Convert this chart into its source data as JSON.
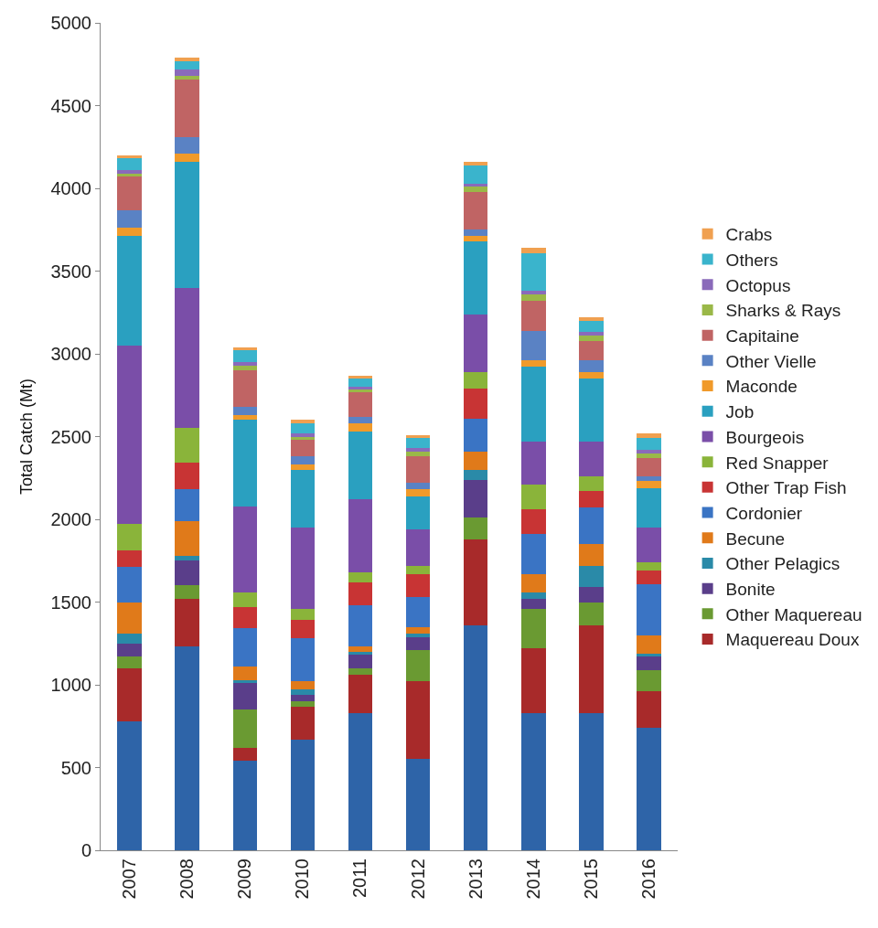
{
  "chart_data": {
    "type": "bar",
    "stacked": true,
    "ylabel": "Total Catch (Mt)",
    "ylim": [
      0,
      5000
    ],
    "yticks": [
      0,
      500,
      1000,
      1500,
      2000,
      2500,
      3000,
      3500,
      4000,
      4500,
      5000
    ],
    "legend": "right",
    "categories": [
      "2007",
      "2008",
      "2009",
      "2010",
      "2011",
      "2012",
      "2013",
      "2014",
      "2015",
      "2016"
    ],
    "series": [
      {
        "color": "#2e64a8",
        "values": [
          780,
          1230,
          540,
          670,
          830,
          550,
          1360,
          830,
          830,
          740
        ]
      },
      {
        "name": "Maquereau Doux",
        "color": "#a82a2a",
        "values": [
          320,
          290,
          80,
          200,
          230,
          470,
          520,
          390,
          530,
          220
        ]
      },
      {
        "name": "Other Maquereau",
        "color": "#6a9a32",
        "values": [
          70,
          80,
          230,
          30,
          40,
          190,
          130,
          240,
          140,
          130
        ]
      },
      {
        "name": "Bonite",
        "color": "#5a3e8a",
        "values": [
          80,
          150,
          160,
          40,
          80,
          80,
          230,
          60,
          90,
          80
        ]
      },
      {
        "name": "Other Pelagics",
        "color": "#2a8aa8",
        "values": [
          60,
          30,
          20,
          30,
          20,
          20,
          60,
          40,
          130,
          20
        ]
      },
      {
        "name": "Becune",
        "color": "#e07a1a",
        "values": [
          190,
          210,
          80,
          50,
          30,
          40,
          110,
          110,
          130,
          110
        ]
      },
      {
        "name": "Cordonier",
        "color": "#3a74c4",
        "values": [
          210,
          190,
          230,
          260,
          250,
          180,
          200,
          240,
          220,
          310
        ]
      },
      {
        "name": "Other Trap Fish",
        "color": "#c83434",
        "values": [
          100,
          160,
          130,
          110,
          140,
          140,
          180,
          150,
          100,
          80
        ]
      },
      {
        "name": "Red Snapper",
        "color": "#8ab43a",
        "values": [
          165,
          210,
          90,
          70,
          60,
          50,
          100,
          150,
          90,
          50
        ]
      },
      {
        "name": "Bourgeois",
        "color": "#7a4ea8",
        "values": [
          1075,
          850,
          520,
          490,
          440,
          220,
          350,
          260,
          210,
          210
        ]
      },
      {
        "name": "Job",
        "color": "#2aa0c0",
        "values": [
          660,
          760,
          520,
          350,
          410,
          200,
          440,
          450,
          380,
          240
        ]
      },
      {
        "name": "Maconde",
        "color": "#f09a2a",
        "values": [
          50,
          50,
          30,
          30,
          50,
          40,
          30,
          40,
          40,
          40
        ]
      },
      {
        "name": "Other Vielle",
        "color": "#5a82c4",
        "values": [
          110,
          100,
          50,
          50,
          40,
          40,
          40,
          180,
          70,
          30
        ]
      },
      {
        "name": "Capitaine",
        "color": "#c06464",
        "values": [
          200,
          350,
          220,
          100,
          150,
          160,
          230,
          180,
          120,
          110
        ]
      },
      {
        "name": "Sharks & Rays",
        "color": "#9ab848",
        "values": [
          20,
          20,
          30,
          20,
          20,
          30,
          30,
          40,
          30,
          30
        ]
      },
      {
        "name": "Octopus",
        "color": "#8a6aba",
        "values": [
          20,
          40,
          20,
          20,
          10,
          20,
          20,
          20,
          20,
          20
        ]
      },
      {
        "name": "Others",
        "color": "#3ab4cc",
        "values": [
          70,
          50,
          70,
          60,
          50,
          60,
          110,
          230,
          70,
          70
        ]
      },
      {
        "name": "Crabs",
        "color": "#f0a050",
        "values": [
          20,
          20,
          20,
          20,
          20,
          20,
          20,
          30,
          20,
          30
        ]
      }
    ]
  }
}
